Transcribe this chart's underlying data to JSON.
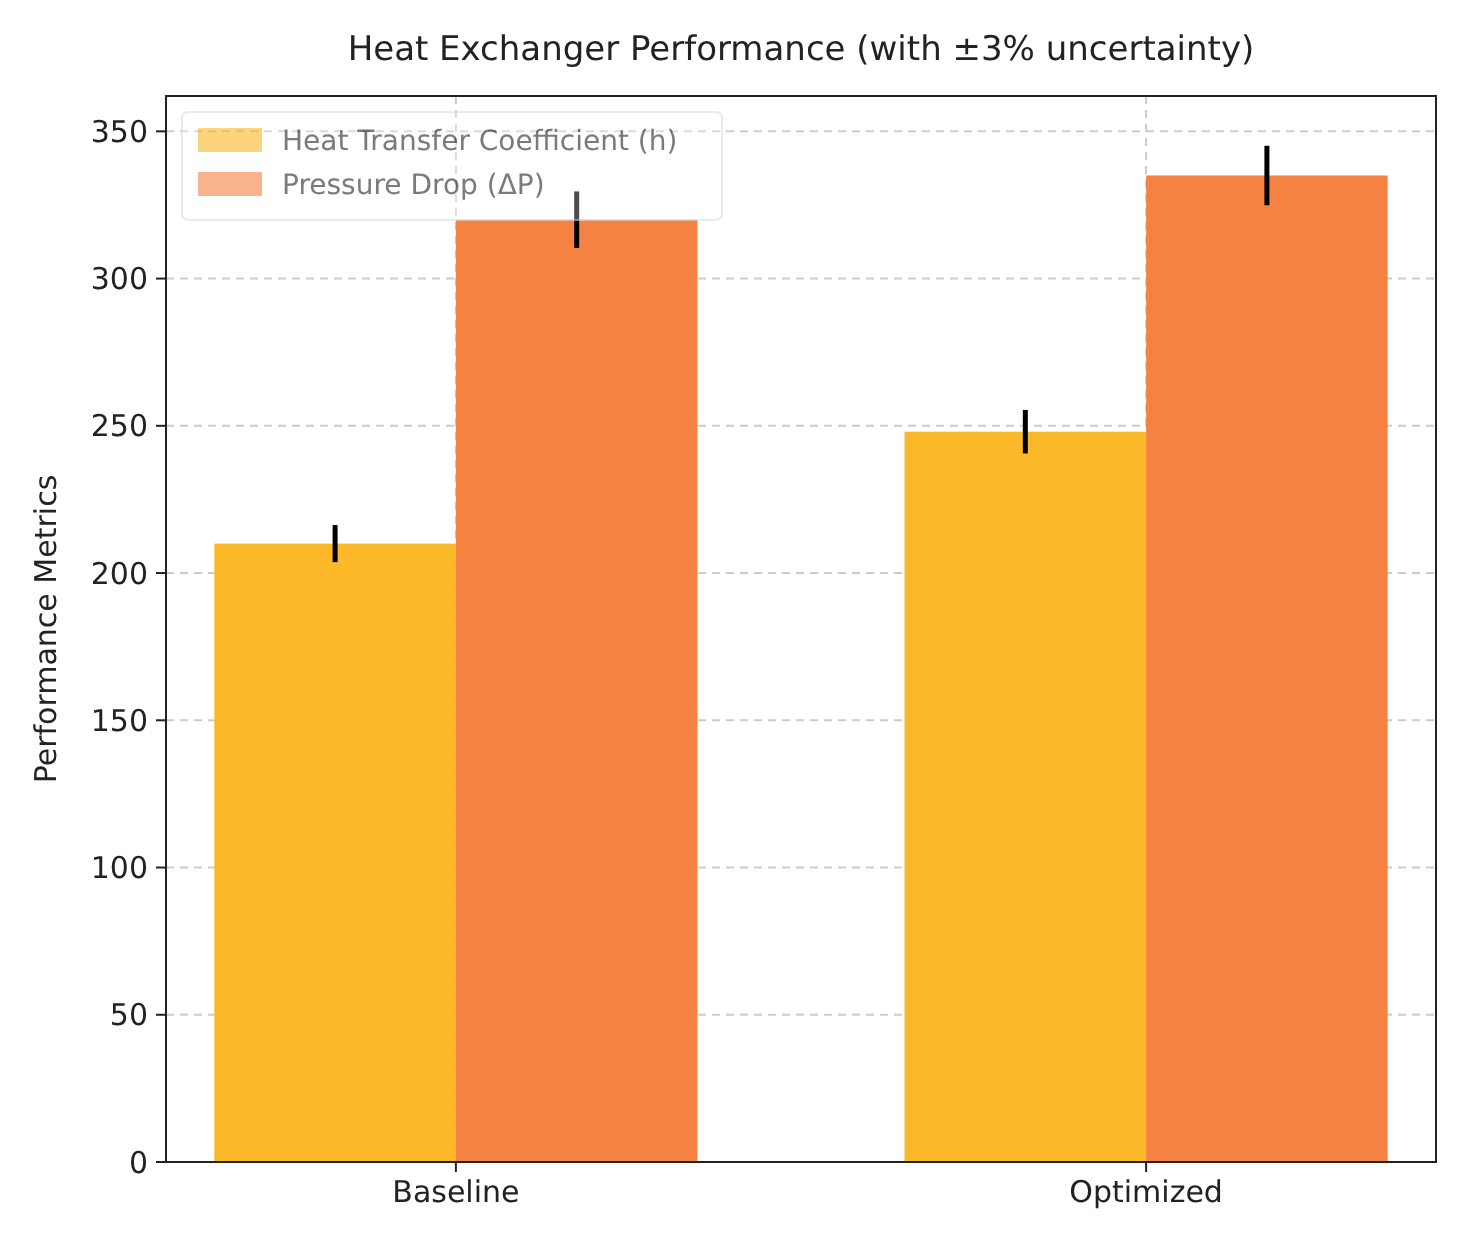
{
  "chart_data": {
    "type": "bar",
    "title": "Heat Exchanger Performance (with ±3% uncertainty)",
    "ylabel": "Performance Metrics",
    "categories": [
      "Baseline",
      "Optimized"
    ],
    "series": [
      {
        "name": "Heat Transfer Coefficient (h)",
        "color": "#fbb829",
        "values": [
          210,
          248
        ],
        "errors": [
          6.3,
          7.4
        ]
      },
      {
        "name": "Pressure Drop (ΔP)",
        "color": "#f58142",
        "values": [
          320,
          335
        ],
        "errors": [
          9.6,
          10.1
        ]
      }
    ],
    "ylim": [
      0,
      362
    ],
    "yticks": [
      0,
      50,
      100,
      150,
      200,
      250,
      300,
      350
    ],
    "grid": true,
    "legend": "top left"
  }
}
